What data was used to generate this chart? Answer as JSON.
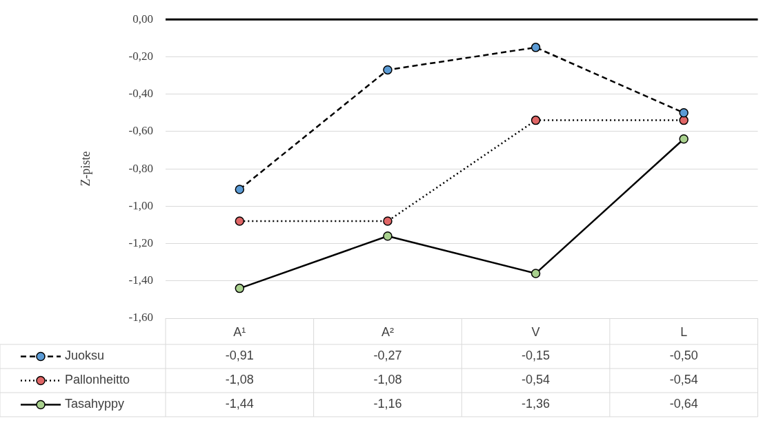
{
  "chart_data": {
    "type": "line",
    "ylabel": "Z-piste",
    "categories": [
      "A¹",
      "A²",
      "V",
      "L"
    ],
    "series": [
      {
        "name": "Juoksu",
        "color": "#5b9bd5",
        "line_style": "dashed",
        "values": [
          -0.91,
          -0.27,
          -0.15,
          -0.5
        ],
        "value_labels": [
          "-0,91",
          "-0,27",
          "-0,15",
          "-0,50"
        ]
      },
      {
        "name": "Pallonheitto",
        "color": "#e06666",
        "line_style": "dotted",
        "values": [
          -1.08,
          -1.08,
          -0.54,
          -0.54
        ],
        "value_labels": [
          "-1,08",
          "-1,08",
          "-0,54",
          "-0,54"
        ]
      },
      {
        "name": "Tasahyppy",
        "color": "#a9d18e",
        "line_style": "solid",
        "values": [
          -1.44,
          -1.16,
          -1.36,
          -0.64
        ],
        "value_labels": [
          "-1,44",
          "-1,16",
          "-1,36",
          "-0,64"
        ]
      }
    ],
    "ylim": [
      -1.6,
      0
    ],
    "yticks": [
      {
        "value": 0,
        "label": "0,00"
      },
      {
        "value": -0.2,
        "label": "-0,20"
      },
      {
        "value": -0.4,
        "label": "-0,40"
      },
      {
        "value": -0.6,
        "label": "-0,60"
      },
      {
        "value": -0.8,
        "label": "-0,80"
      },
      {
        "value": -1.0,
        "label": "-1,00"
      },
      {
        "value": -1.2,
        "label": "-1,20"
      },
      {
        "value": -1.4,
        "label": "-1,40"
      },
      {
        "value": -1.6,
        "label": "-1,60"
      }
    ],
    "ref_lines": [
      {
        "axis": "y",
        "value": 0,
        "color": "#000000"
      }
    ],
    "grid": "y",
    "marker": "circle",
    "legend": "bottom"
  }
}
